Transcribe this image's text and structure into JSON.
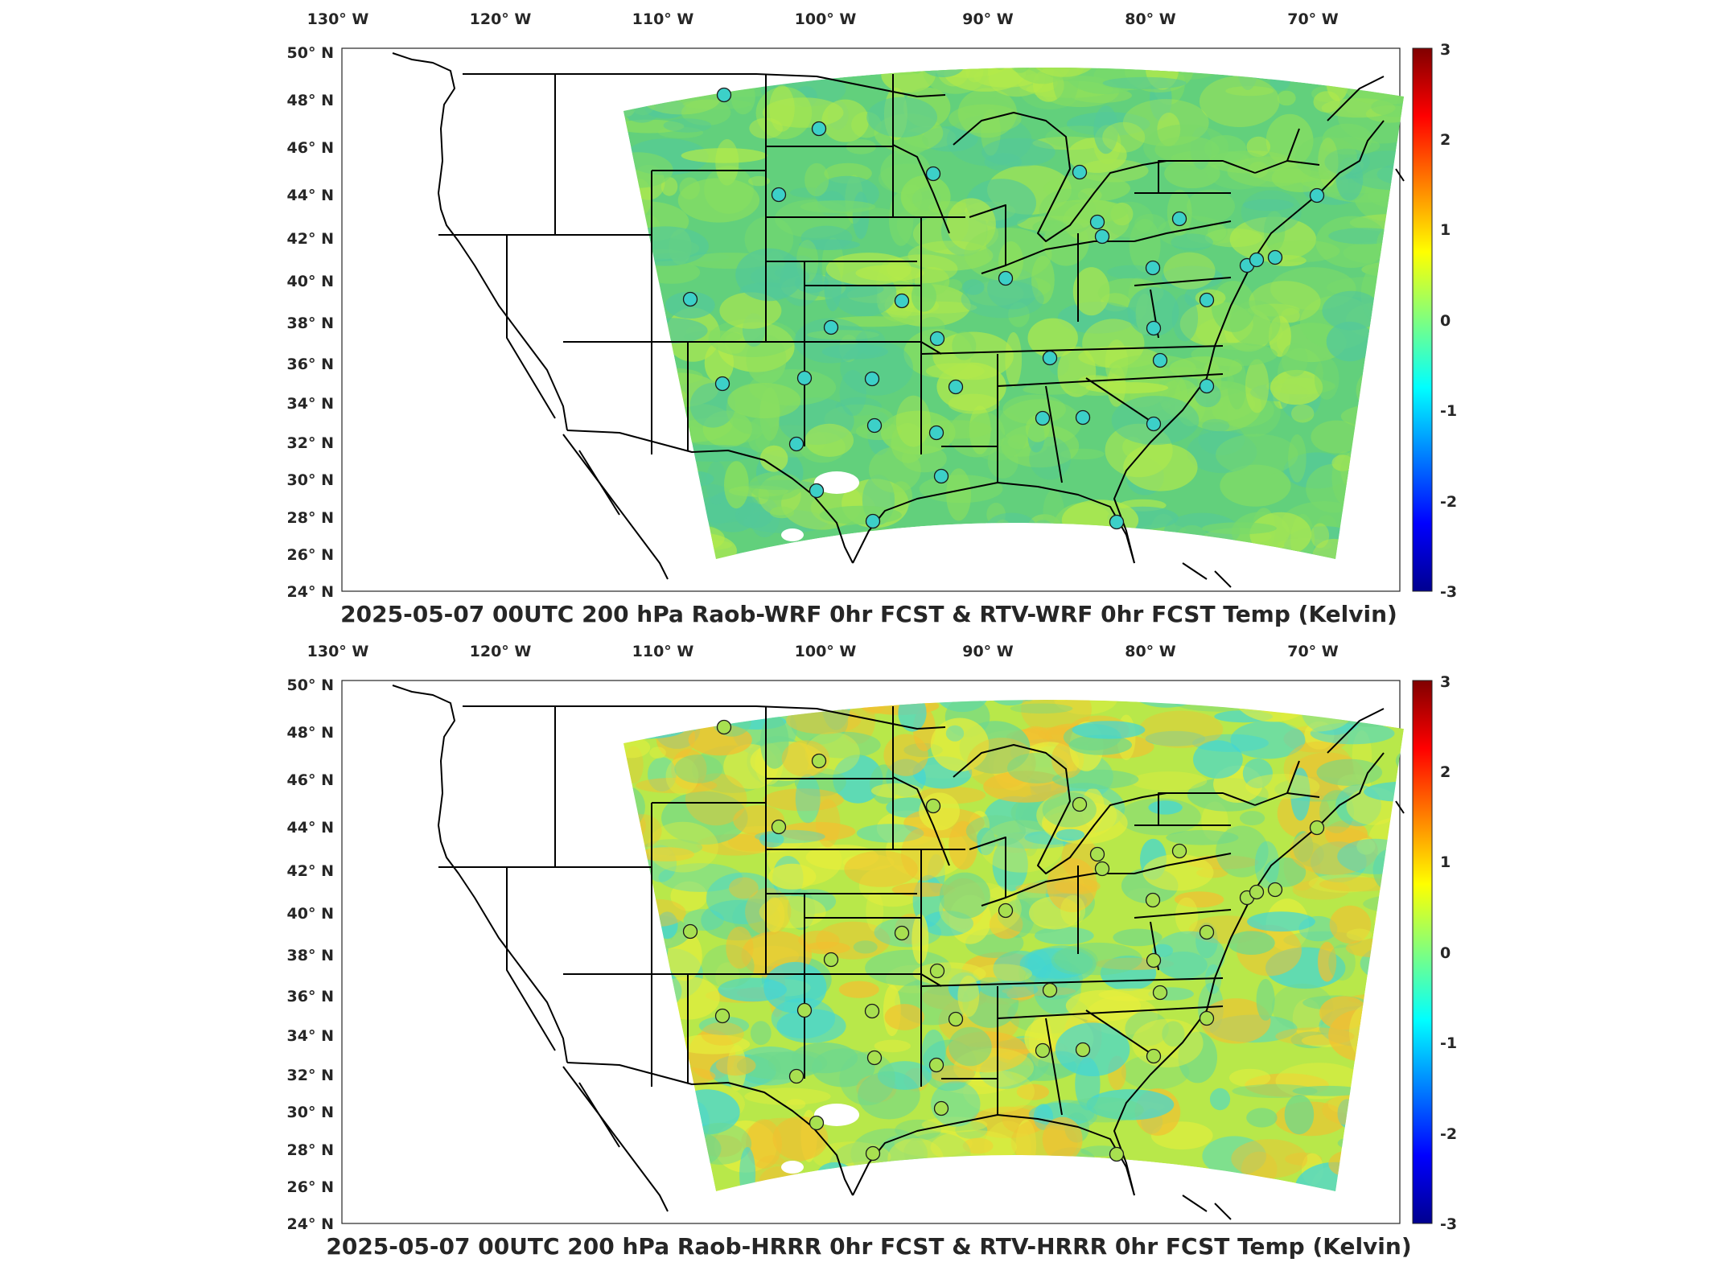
{
  "panels": [
    {
      "id": "wrf",
      "title": "2025-05-07 00UTC 200 hPa Raob-WRF 0hr FCST & RTV-WRF 0hr FCST Temp (Kelvin)",
      "field_colors": [
        "#62d07c",
        "#8ee05c",
        "#b4ea4a",
        "#53c99a",
        "#79da6a"
      ],
      "station_color": "#3cd0c8"
    },
    {
      "id": "hrrr",
      "title": "2025-05-07 00UTC 200 hPa Raob-HRRR 0hr FCST & RTV-HRRR 0hr FCST Temp (Kelvin)",
      "field_colors": [
        "#b8e84a",
        "#e6ee3c",
        "#6ed88e",
        "#40d6d8",
        "#f2c030"
      ],
      "station_color": "#a8e050"
    }
  ],
  "lon_ticks": [
    "130° W",
    "120° W",
    "110° W",
    "100° W",
    "90° W",
    "80° W",
    "70° W"
  ],
  "lat_ticks": [
    "50° N",
    "48° N",
    "46° N",
    "44° N",
    "42° N",
    "40° N",
    "38° N",
    "36° N",
    "34° N",
    "32° N",
    "30° N",
    "28° N",
    "26° N",
    "24° N"
  ],
  "colorbar": {
    "min": -3,
    "max": 3,
    "ticks": [
      "3",
      "2",
      "1",
      "0",
      "-1",
      "-2",
      "-3"
    ],
    "colormap": "jet"
  }
}
